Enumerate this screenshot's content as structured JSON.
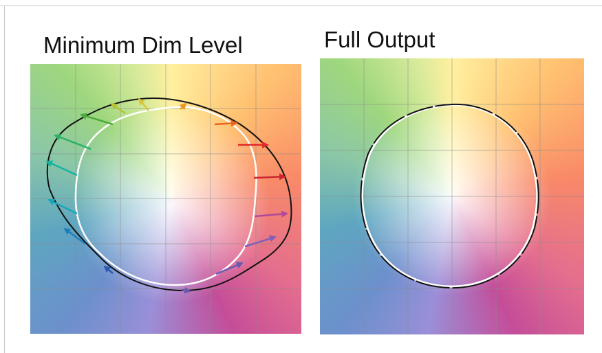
{
  "titles": {
    "left": "Minimum Dim Level",
    "right": "Full Output"
  },
  "colors": {
    "outer_contour": "#111111",
    "inner_contour": "#ffffff",
    "grid": "#8a8a8a",
    "arrow_palette": [
      "#d9c33b",
      "#e8961f",
      "#e8651f",
      "#e02b2b",
      "#cc2530",
      "#b04a9a",
      "#8060b8",
      "#6a58b0",
      "#2f58b0",
      "#1d7fb8",
      "#19a5b8",
      "#17b3a0",
      "#2ab06a",
      "#4cab3a",
      "#7ebd2e",
      "#b7c233"
    ]
  },
  "panels": {
    "left": {
      "name": "Minimum Dim Level",
      "shows_arrows": true,
      "grid_divisions": 6
    },
    "right": {
      "name": "Full Output",
      "shows_arrows": false,
      "grid_divisions": 6
    }
  }
}
